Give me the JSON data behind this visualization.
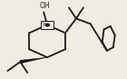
{
  "bg_color": "#f0ece2",
  "line_color": "#1a1a1a",
  "line_width": 1.3,
  "abs_box": true
}
